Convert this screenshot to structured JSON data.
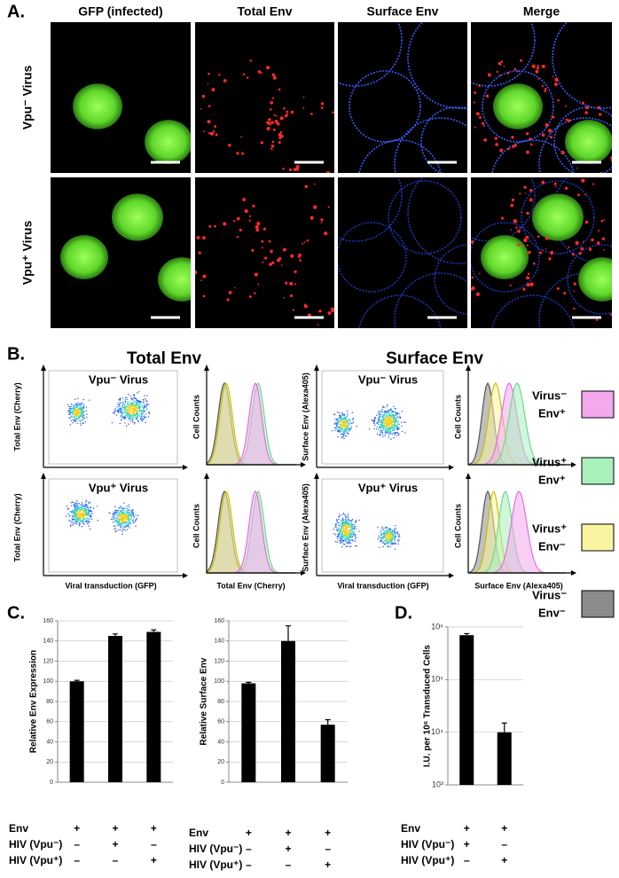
{
  "panel_a": {
    "label": "A.",
    "columns": [
      "GFP (infected)",
      "Total Env",
      "Surface Env",
      "Merge"
    ],
    "rows": [
      "Vpu⁻ Virus",
      "Vpu⁺ Virus"
    ]
  },
  "panel_b": {
    "label": "B.",
    "headers": [
      "Total Env",
      "Surface Env"
    ],
    "plot_titles": [
      "Vpu⁻ Virus",
      "Vpu⁺ Virus"
    ],
    "axis_labels": {
      "total_env": "Total Env (Cherry)",
      "surface_env": "Surface Env (Alexa405)",
      "gfp": "Viral transduction (GFP)",
      "counts": "Cell Counts"
    },
    "legend": [
      {
        "name": [
          "Virus⁻",
          "Env⁺"
        ],
        "color": "#f4a8ee"
      },
      {
        "name": [
          "Virus⁺",
          "Env⁺"
        ],
        "color": "#a8f0bc"
      },
      {
        "name": [
          "Virus⁺",
          "Env⁻"
        ],
        "color": "#f8f4a0"
      },
      {
        "name": [
          "Virus⁻",
          "Env⁻"
        ],
        "color": "#8c8c8c"
      }
    ]
  },
  "panel_c": {
    "label": "C."
  },
  "panel_d": {
    "label": "D."
  },
  "chart_data": [
    {
      "type": "bar",
      "ylabel": "Relative Env Expression",
      "values": [
        100,
        145,
        149
      ],
      "errors": [
        1,
        2,
        2
      ],
      "color": "#000000",
      "ylim": [
        0,
        160
      ],
      "yticks": [
        0,
        20,
        40,
        60,
        80,
        100,
        120,
        140,
        160
      ],
      "grid": true,
      "conditions": [
        {
          "label": "Env",
          "marks": [
            "+",
            "+",
            "+"
          ]
        },
        {
          "label": "HIV (Vpu⁻)",
          "marks": [
            "–",
            "+",
            "–"
          ]
        },
        {
          "label": "HIV (Vpu⁺)",
          "marks": [
            "–",
            "–",
            "+"
          ]
        }
      ]
    },
    {
      "type": "bar",
      "ylabel": "Relative Surface Env",
      "values": [
        98,
        140,
        57
      ],
      "errors": [
        1,
        15,
        5
      ],
      "color": "#000000",
      "ylim": [
        0,
        160
      ],
      "yticks": [
        0,
        20,
        40,
        60,
        80,
        100,
        120,
        140,
        160
      ],
      "grid": true,
      "conditions": [
        {
          "label": "Env",
          "marks": [
            "+",
            "+",
            "+"
          ]
        },
        {
          "label": "HIV (Vpu⁻)",
          "marks": [
            "–",
            "+",
            "–"
          ]
        },
        {
          "label": "HIV (Vpu⁺)",
          "marks": [
            "–",
            "–",
            "+"
          ]
        }
      ]
    },
    {
      "type": "bar",
      "ylabel": "I.U. per 10⁶ Transduced Cells",
      "values": [
        700000,
        10000
      ],
      "errors": [
        50000,
        5000
      ],
      "color": "#000000",
      "log_scale": true,
      "ylim": [
        1000,
        1000000
      ],
      "yticks": [
        {
          "value": 1000,
          "label": "10³"
        },
        {
          "value": 10000,
          "label": "10⁴"
        },
        {
          "value": 100000,
          "label": "10⁵"
        },
        {
          "value": 1000000,
          "label": "10⁶"
        }
      ],
      "grid": true,
      "conditions": [
        {
          "label": "Env",
          "marks": [
            "+",
            "+"
          ]
        },
        {
          "label": "HIV (Vpu⁻)",
          "marks": [
            "+",
            "–"
          ]
        },
        {
          "label": "HIV (Vpu⁺)",
          "marks": [
            "–",
            "+"
          ]
        }
      ]
    }
  ]
}
